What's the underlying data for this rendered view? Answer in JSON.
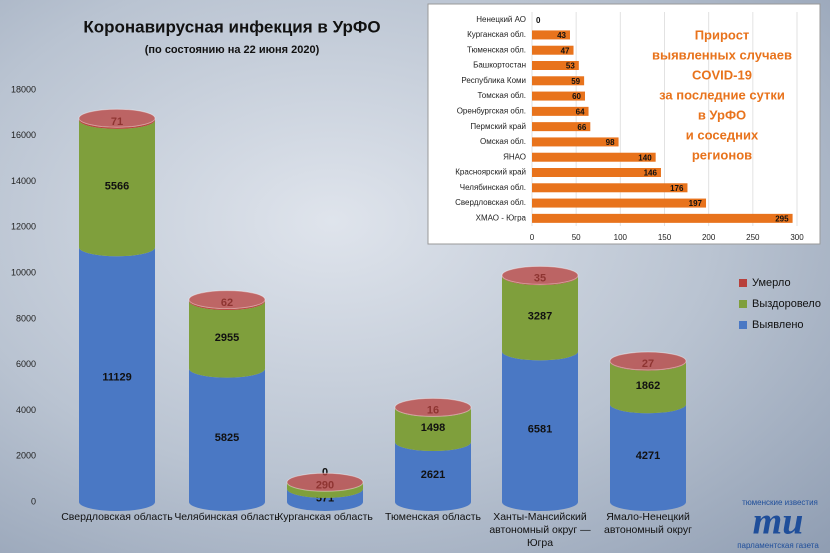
{
  "chart_data": [
    {
      "type": "bar",
      "stacked": true,
      "orientation": "vertical",
      "title": "Коронавирусная инфекция в УрФО",
      "subtitle": "(по состоянию на 22 июня 2020)",
      "categories": [
        "Свердловская область",
        "Челябинская область",
        "Курганская область",
        "Тюменская область",
        "Ханты-Мансийский автономный округ — Югра",
        "Ямало-Ненецкий автономный округ"
      ],
      "series": [
        {
          "name": "Выявлено",
          "color": "#4a78c4",
          "values": [
            11129,
            5825,
            571,
            2621,
            6581,
            4271
          ]
        },
        {
          "name": "Выздоровело",
          "color": "#7f9f3c",
          "values": [
            5566,
            2955,
            290,
            1498,
            3287,
            1862
          ]
        },
        {
          "name": "Умерло",
          "color": "#b8403c",
          "values": [
            71,
            62,
            0,
            16,
            35,
            27
          ]
        }
      ],
      "ylim": [
        0,
        18000
      ],
      "yticks": [
        0,
        2000,
        4000,
        6000,
        8000,
        10000,
        12000,
        14000,
        16000,
        18000
      ],
      "grid": false,
      "legend": "right"
    },
    {
      "type": "bar",
      "stacked": false,
      "orientation": "horizontal",
      "title": [
        "Прирост",
        "выявленных случаев",
        "COVID-19",
        "за последние сутки",
        "в УрФО",
        "и соседних",
        "регионов"
      ],
      "categories": [
        "Ненецкий АО",
        "Курганская обл.",
        "Тюменская обл.",
        "Башкортостан",
        "Республика Коми",
        "Томская обл.",
        "Оренбургская обл.",
        "Пермский край",
        "Омская обл.",
        "ЯНАО",
        "Красноярский край",
        "Челябинская обл.",
        "Свердловская обл.",
        "ХМАО - Югра"
      ],
      "values": [
        0,
        43,
        47,
        53,
        59,
        60,
        64,
        66,
        98,
        140,
        146,
        176,
        197,
        295
      ],
      "color": "#e8731c",
      "xlim": [
        0,
        300
      ],
      "xticks": [
        0,
        50,
        100,
        150,
        200,
        250,
        300
      ],
      "grid": true
    }
  ],
  "logo": {
    "top": "тюменские известия",
    "mark": "ти",
    "bottom": "парламентская газета"
  }
}
